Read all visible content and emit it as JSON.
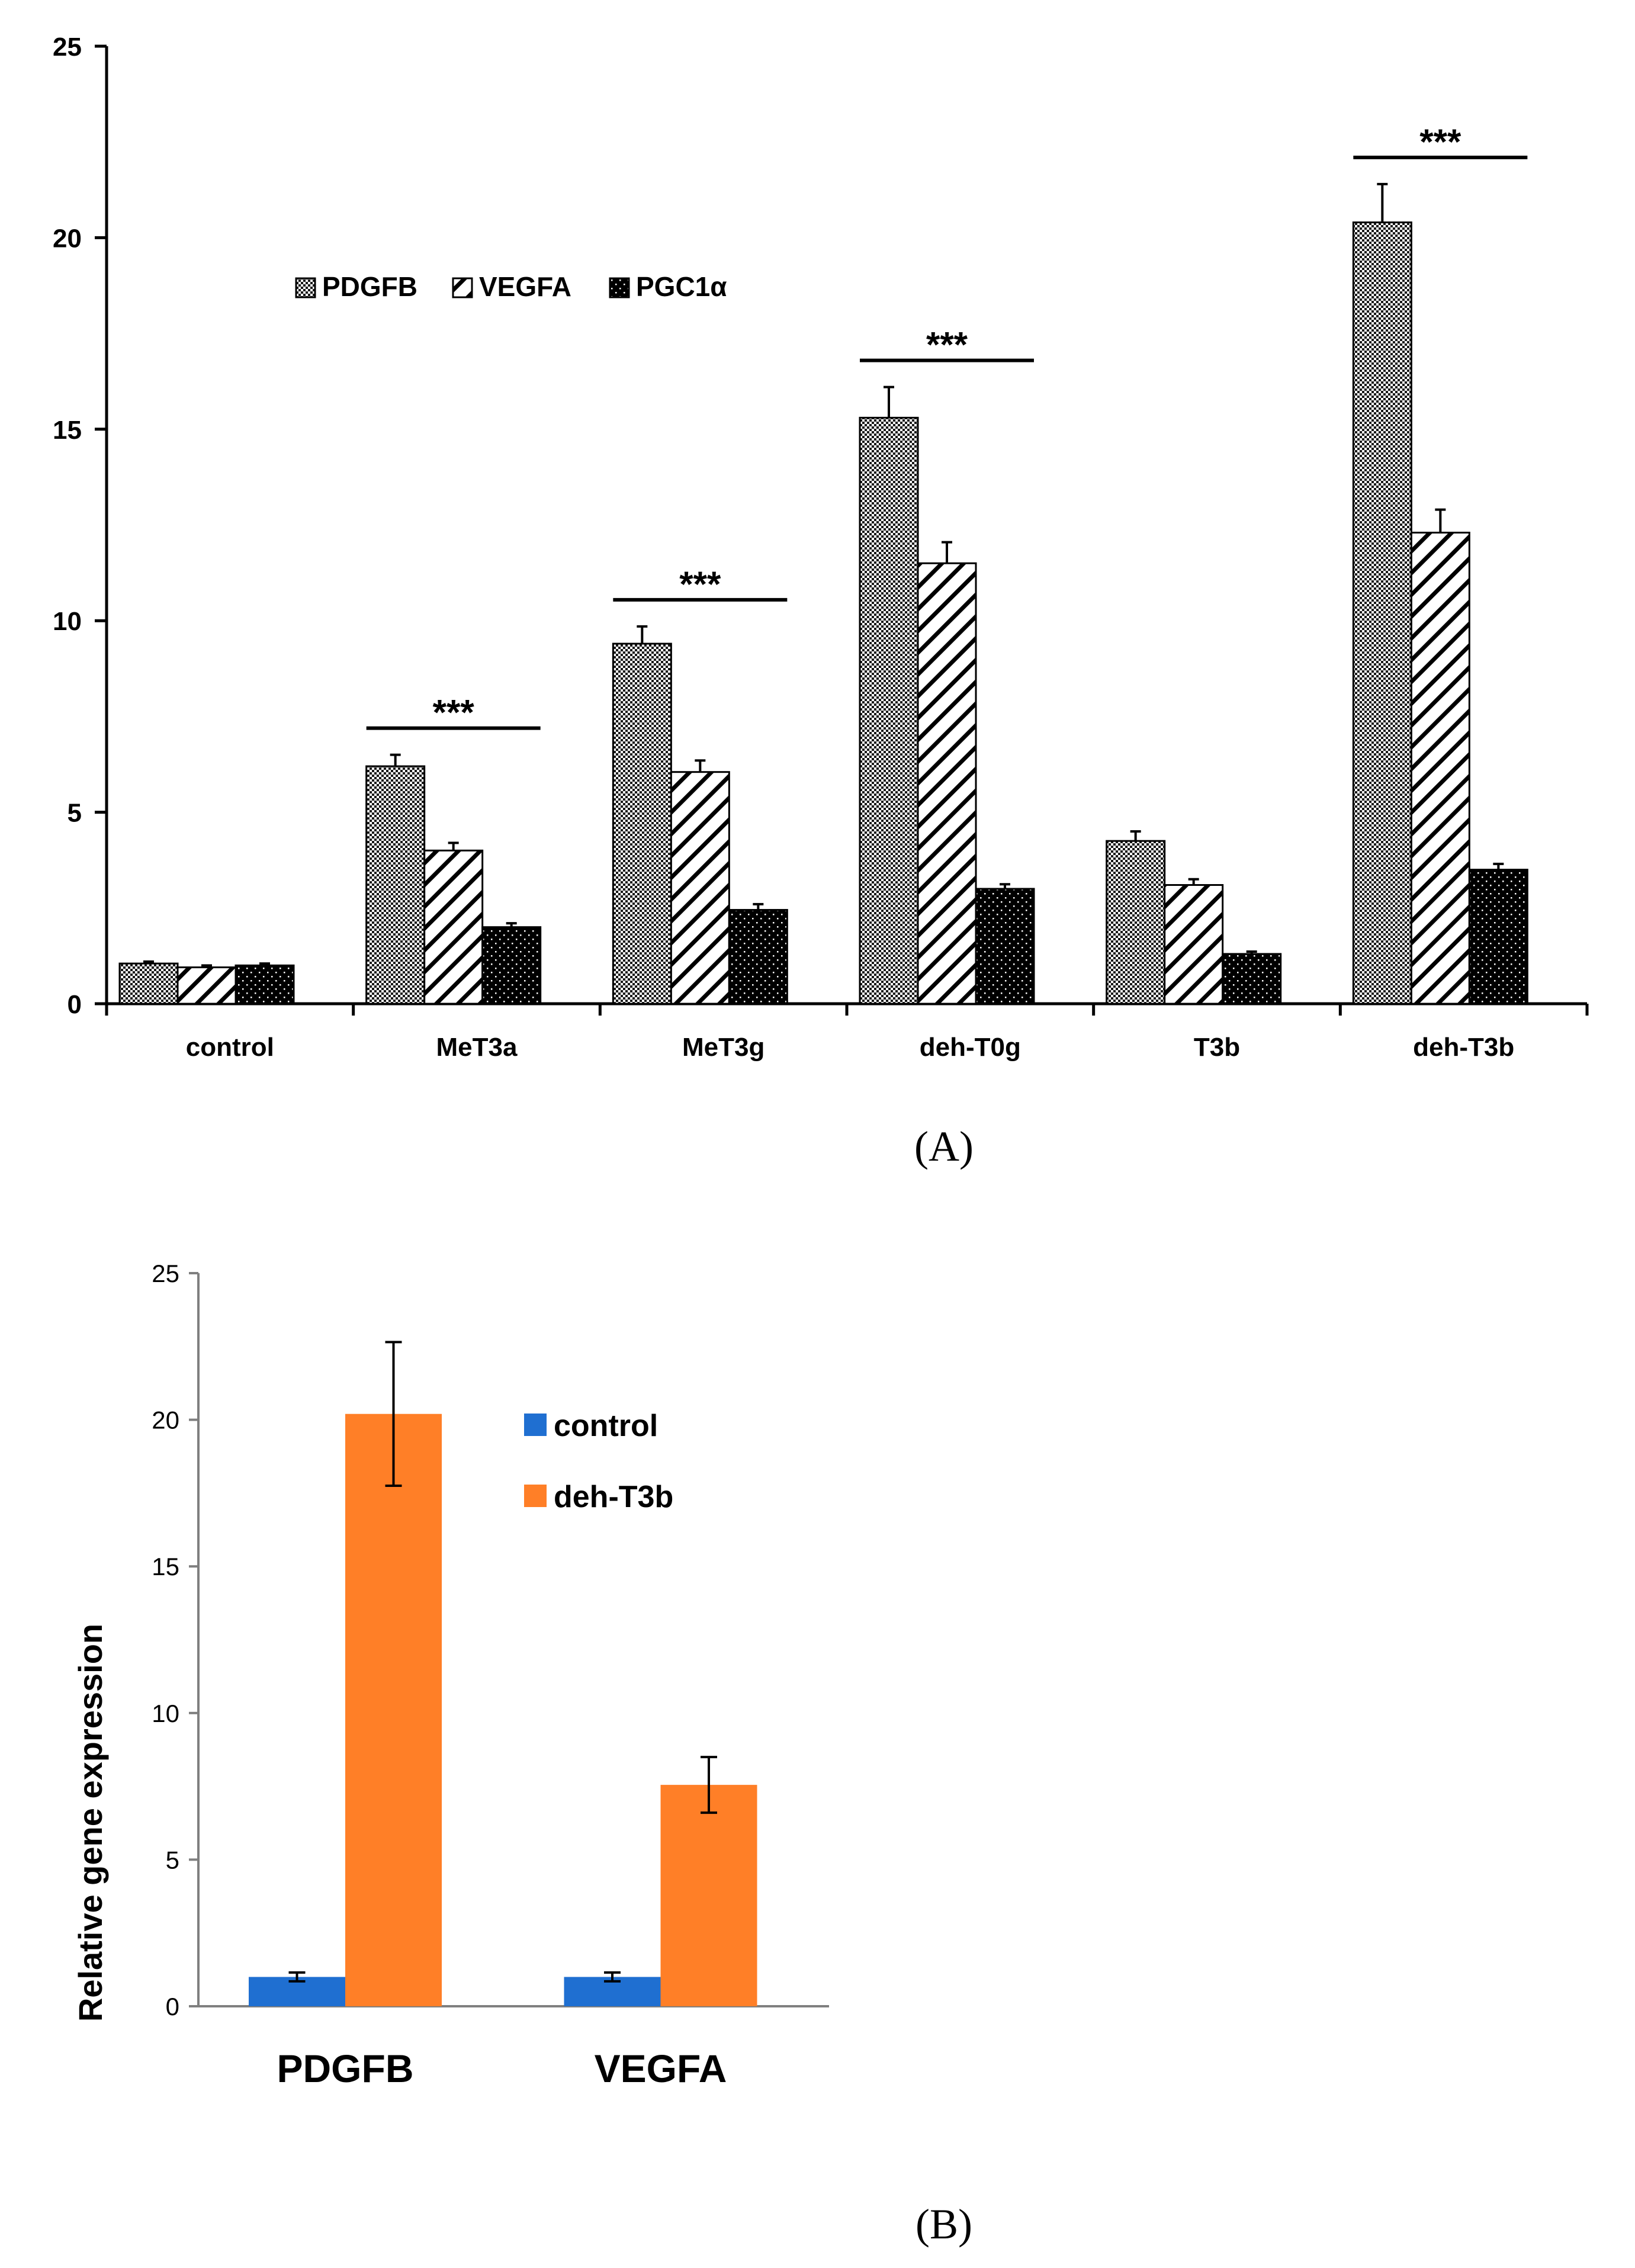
{
  "chart_data": [
    {
      "panel": "A",
      "type": "bar",
      "categories": [
        "control",
        "MeT3a",
        "MeT3g",
        "deh-T0g",
        "T3b",
        "deh-T3b"
      ],
      "series": [
        {
          "name": "PDGFB",
          "pattern": "dots",
          "values": [
            1.05,
            6.2,
            9.4,
            15.3,
            4.25,
            20.4
          ],
          "errors": [
            0.05,
            0.3,
            0.45,
            0.8,
            0.25,
            1.0
          ]
        },
        {
          "name": "VEGFA",
          "pattern": "hatch",
          "values": [
            0.95,
            4.0,
            6.05,
            11.5,
            3.1,
            12.3
          ],
          "errors": [
            0.05,
            0.2,
            0.3,
            0.55,
            0.15,
            0.6
          ]
        },
        {
          "name": "PGC1α",
          "pattern": "dark",
          "values": [
            1.0,
            2.0,
            2.45,
            3.0,
            1.3,
            3.5
          ],
          "errors": [
            0.05,
            0.1,
            0.15,
            0.12,
            0.06,
            0.15
          ]
        }
      ],
      "significance": [
        {
          "category": "MeT3a",
          "label": "***"
        },
        {
          "category": "MeT3g",
          "label": "***"
        },
        {
          "category": "deh-T0g",
          "label": "***"
        },
        {
          "category": "deh-T3b",
          "label": "***"
        }
      ],
      "ylim": [
        0,
        25
      ],
      "yticks": [
        "0",
        "5",
        "10",
        "15",
        "20",
        "25"
      ],
      "xlabel": "",
      "ylabel": "",
      "title": "",
      "legend_position": "upper-left",
      "panel_label": "(A)"
    },
    {
      "panel": "B",
      "type": "bar",
      "categories": [
        "PDGFB",
        "VEGFA"
      ],
      "series": [
        {
          "name": "control",
          "color": "#1f6fd1",
          "values": [
            1.0,
            1.0
          ],
          "errors": [
            0.15,
            0.15
          ]
        },
        {
          "name": "deh-T3b",
          "color": "#ff7f27",
          "values": [
            20.2,
            7.55
          ],
          "errors": [
            2.45,
            0.95
          ]
        }
      ],
      "ylim": [
        0,
        25
      ],
      "yticks": [
        "0",
        "5",
        "10",
        "15",
        "20",
        "25"
      ],
      "xlabel": "",
      "ylabel": "Relative gene expression",
      "title": "",
      "legend_position": "top-right",
      "panel_label": "(B)"
    }
  ]
}
